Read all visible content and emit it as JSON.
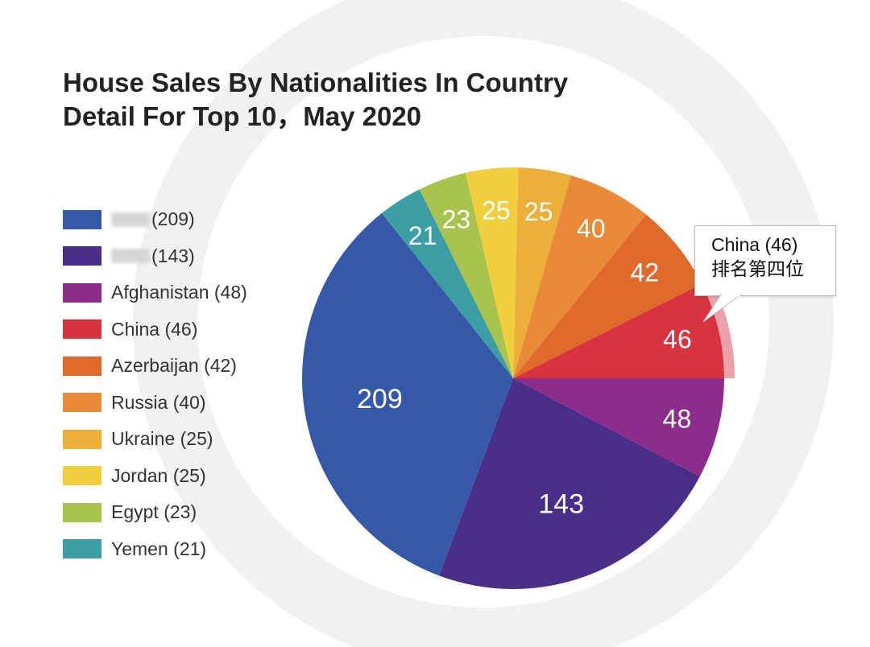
{
  "chart_data": {
    "type": "pie",
    "title": "House Sales By Nationalities In Country Detail For Top 10，May 2020",
    "title_lines": [
      "House Sales By Nationalities In Country",
      "Detail For Top 10，May 2020"
    ],
    "categories": [
      "(redacted)",
      "(redacted)",
      "Afghanistan",
      "China",
      "Azerbaijan",
      "Russia",
      "Ukraine",
      "Jordan",
      "Egypt",
      "Yemen"
    ],
    "values": [
      209,
      143,
      48,
      46,
      42,
      40,
      25,
      25,
      23,
      21
    ],
    "colors": [
      "#3558a8",
      "#4a2f8a",
      "#8e2c8c",
      "#d8343f",
      "#e06a2c",
      "#e88a38",
      "#eeae3a",
      "#f0cf3d",
      "#a8c34e",
      "#3e9ea6"
    ],
    "legend_labels": [
      "(209)",
      "(143)",
      "Afghanistan (48)",
      "China (46)",
      "Azerbaijan (42)",
      "Russia (40)",
      "Ukraine (25)",
      "Jordan (25)",
      "Egypt (23)",
      "Yemen (21)"
    ],
    "legend_redacted": [
      true,
      true,
      false,
      false,
      false,
      false,
      false,
      false,
      false,
      false
    ],
    "pie_order_clockwise_from_east": [
      2,
      1,
      0,
      9,
      8,
      7,
      6,
      5,
      4,
      3
    ],
    "highlight": "China",
    "legend_placement": "left",
    "annotation": {
      "line1": "China (46)",
      "line2": "排名第四位"
    }
  }
}
